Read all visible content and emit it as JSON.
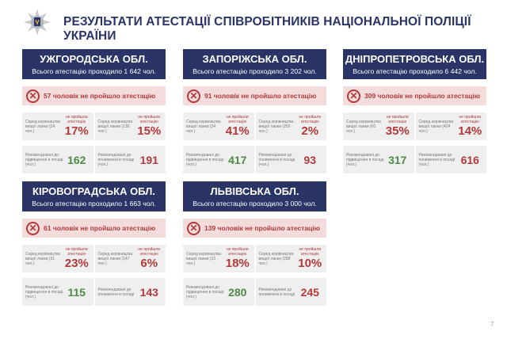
{
  "title": "РЕЗУЛЬТАТИ АТЕСТАЦІЇ СПІВРОБІТНИКІВ НАЦІОНАЛЬНОЇ ПОЛІЦІЇ УКРАЇНИ",
  "page_number": "7",
  "colors": {
    "navy": "#2b3467",
    "red": "#b23a3a",
    "green": "#4e8a46",
    "pink": "#f5dcdc",
    "gray": "#efefef"
  },
  "labels": {
    "leaders_prefix": "Серед керівництва вищої ланки",
    "not_passed": "не пройшли атестацію",
    "promote": "Рекомендовані до підвищення в посаді (чол.)",
    "demote": "Рекомендовані до пониження в посаді (чол.)"
  },
  "regions": [
    {
      "name": "УЖГОРОДСЬКА ОБЛ.",
      "total": "Всього атестацію проходило 1 642 чол.",
      "failed": "57 чоловік не пройшло атестацію",
      "top_label": "Серед керівництва вищої ланки (24 чол.)",
      "top_pct": "17%",
      "mid_label": "Серед керівництва вищої ланки (130 чол.)",
      "mid_pct": "15%",
      "promote_label": "Рекомендовані до підвищення в посаді (чол.)",
      "promote": "162",
      "demote_label": "Рекомендовані до пониження в посаді (чол.)",
      "demote": "191"
    },
    {
      "name": "ЗАПОРІЖСЬКА ОБЛ.",
      "total": "Всього атестацію проходило 3 202 чол.",
      "failed": "91 чоловік не пройшло атестацію",
      "top_label": "Серед керівництва вищої ланки (34 чол.)",
      "top_pct": "41%",
      "mid_label": "Серед керівництва вищої ланки (250 чол.)",
      "mid_pct": "2%",
      "promote_label": "Рекомендовані до підвищення в посаді (чол.)",
      "promote": "417",
      "demote_label": "Рекомендовані до пониження в посаді (чол.)",
      "demote": "93"
    },
    {
      "name": "ДНІПРОПЕТРОВСЬКА ОБЛ.",
      "total": "Всього атестацію проходило 6 442 чол.",
      "failed": "309 чоловік не пройшло атестацію",
      "top_label": "Серед керівництва вищої ланки (60 чол.)",
      "top_pct": "35%",
      "mid_label": "Серед керівництва вищої ланки (424 чол.)",
      "mid_pct": "14%",
      "promote_label": "Рекомендовані до підвищення в посаді (чол.)",
      "promote": "317",
      "demote_label": "Рекомендовані до пониження в посаді (чол.)",
      "demote": "616"
    },
    {
      "name": "КІРОВОГРАДСЬКА ОБЛ.",
      "total": "Всього атестацію проходило 1 663 чол.",
      "failed": "61 чоловік не пройшло атестацію",
      "top_label": "Серед керівництва вищої ланки (31 чол.)",
      "top_pct": "23%",
      "mid_label": "Серед керівництва вищої ланки (147 чол.)",
      "mid_pct": "6%",
      "promote_label": "Рекомендовані до підвищення в посаді (чол.)",
      "promote": "115",
      "demote_label": "Рекомендовані до пониження в посаді",
      "demote": "143"
    },
    {
      "name": "ЛЬВІВСЬКА ОБЛ.",
      "total": "Всього атестацію проходило 3 000 чол.",
      "failed": "139 чоловік не пройшло атестацію",
      "top_label": "Серед керівництва вищої ланки (33 чол.)",
      "top_pct": "18%",
      "mid_label": "Серед керівництва вищої ланки (288 чол.)",
      "mid_pct": "10%",
      "promote_label": "Рекомендовані до підвищення в посаді (чол.)",
      "promote": "280",
      "demote_label": "Рекомендовані до пониження в посаді",
      "demote": "245"
    }
  ]
}
